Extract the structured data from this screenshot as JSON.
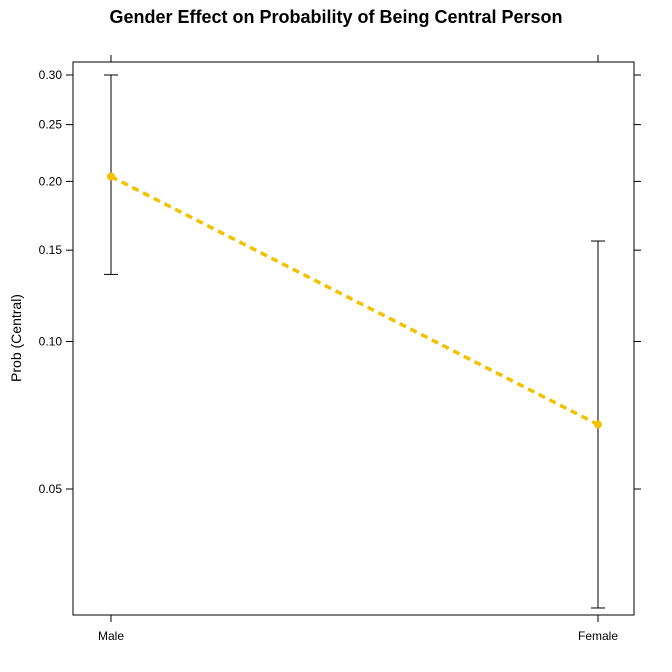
{
  "chart_data": {
    "type": "line",
    "title": "Gender Effect on Probability of Being Central Person",
    "xlabel": "",
    "ylabel": "Prob (Central)",
    "y_scale": "logit",
    "categories": [
      "Male",
      "Female"
    ],
    "series": [
      {
        "values": [
          0.204,
          0.068
        ],
        "lower": [
          0.135,
          0.028
        ],
        "upper": [
          0.3,
          0.156
        ],
        "color": "#f2c200",
        "line_style": "dashed"
      }
    ],
    "y_ticks": [
      "0.05",
      "0.10",
      "0.15",
      "0.20",
      "0.25",
      "0.30"
    ],
    "y_tick_values": [
      0.05,
      0.1,
      0.15,
      0.2,
      0.25,
      0.3
    ],
    "grid": false,
    "legend": "none"
  }
}
